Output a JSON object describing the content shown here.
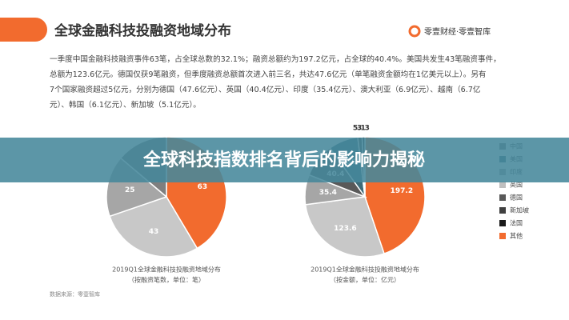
{
  "header": {
    "title": "全球金融科技投融资地域分布",
    "logo": "零壹财经·零壹智库"
  },
  "paragraph": [
    "一季度中国金融科技融资事件63笔，占全球总数的32.1%；融资总额约为197.2亿元，占全球的40.4%。美国共发生43笔融资事件，",
    "总额为123.6亿元。德国仅获9笔融资，但季度融资总额首次进入前三名，共达47.6亿元（单笔融资金额均在1亿美元以上）。另有",
    "7个国家融资超过5亿元，分别为德国（47.6亿元）、英国（40.4亿元）、印度（35.4亿元）、澳大利亚（6.9亿元）、越南（6.7亿",
    "元）、韩国（6.1亿元）、新加坡（5.1亿元）。"
  ],
  "chart_data": [
    {
      "type": "pie",
      "title": "2019Q1全球金融科技投融资地域分布",
      "subtitle": "（按融资笔数，单位：笔）",
      "values": [
        63,
        43,
        25,
        21
      ],
      "colors": [
        "#f26b2e",
        "#c8c8c8",
        "#a6a6a6",
        "#7f7f7f"
      ]
    },
    {
      "type": "pie",
      "title": "2019Q1全球金融科技投融资地域分布",
      "subtitle": "（按金额，单位：亿元）",
      "values": [
        197.2,
        123.6,
        35.4,
        40.4,
        35,
        5.1,
        3.3
      ],
      "colors": [
        "#f26b2e",
        "#c8c8c8",
        "#a6a6a6",
        "#595959",
        "#3e6b78",
        "#404040",
        "#1a1a1a"
      ]
    }
  ],
  "legend": [
    {
      "name": "中国",
      "color": "#7f7f7f"
    },
    {
      "name": "美国",
      "color": "#3e6b78"
    },
    {
      "name": "印度",
      "color": "#a6a6a6"
    },
    {
      "name": "英国",
      "color": "#bfbfbf"
    },
    {
      "name": "德国",
      "color": "#595959"
    },
    {
      "name": "新加坡",
      "color": "#404040"
    },
    {
      "name": "法国",
      "color": "#1a1a1a"
    },
    {
      "name": "其他",
      "color": "#f26b2e"
    }
  ],
  "banner": "全球科技指数排名背后的影响力揭秘",
  "source": "数据来源：零壹智库"
}
